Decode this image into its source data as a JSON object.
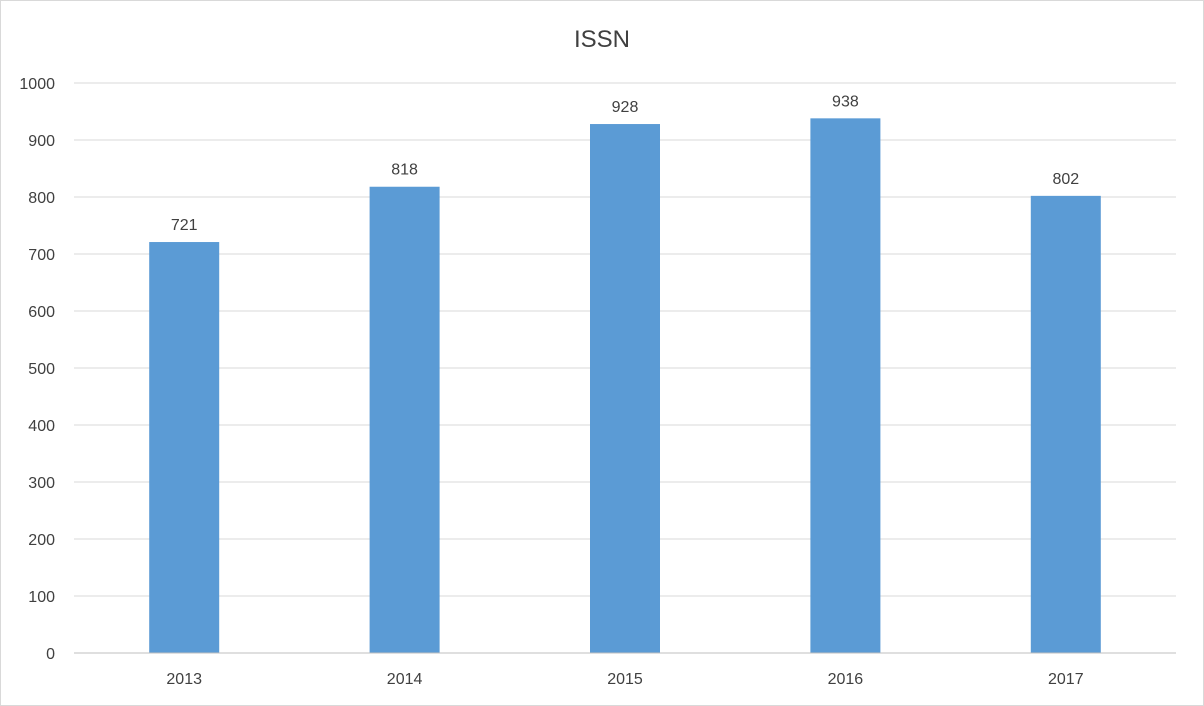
{
  "chart_data": {
    "type": "bar",
    "title": "ISSN",
    "categories": [
      "2013",
      "2014",
      "2015",
      "2016",
      "2017"
    ],
    "values": [
      721,
      818,
      928,
      938,
      802
    ],
    "ylim": [
      0,
      1000
    ],
    "yticks": [
      0,
      100,
      200,
      300,
      400,
      500,
      600,
      700,
      800,
      900,
      1000
    ],
    "grid": true,
    "legend": "none",
    "bar_color": "#5b9bd5"
  }
}
